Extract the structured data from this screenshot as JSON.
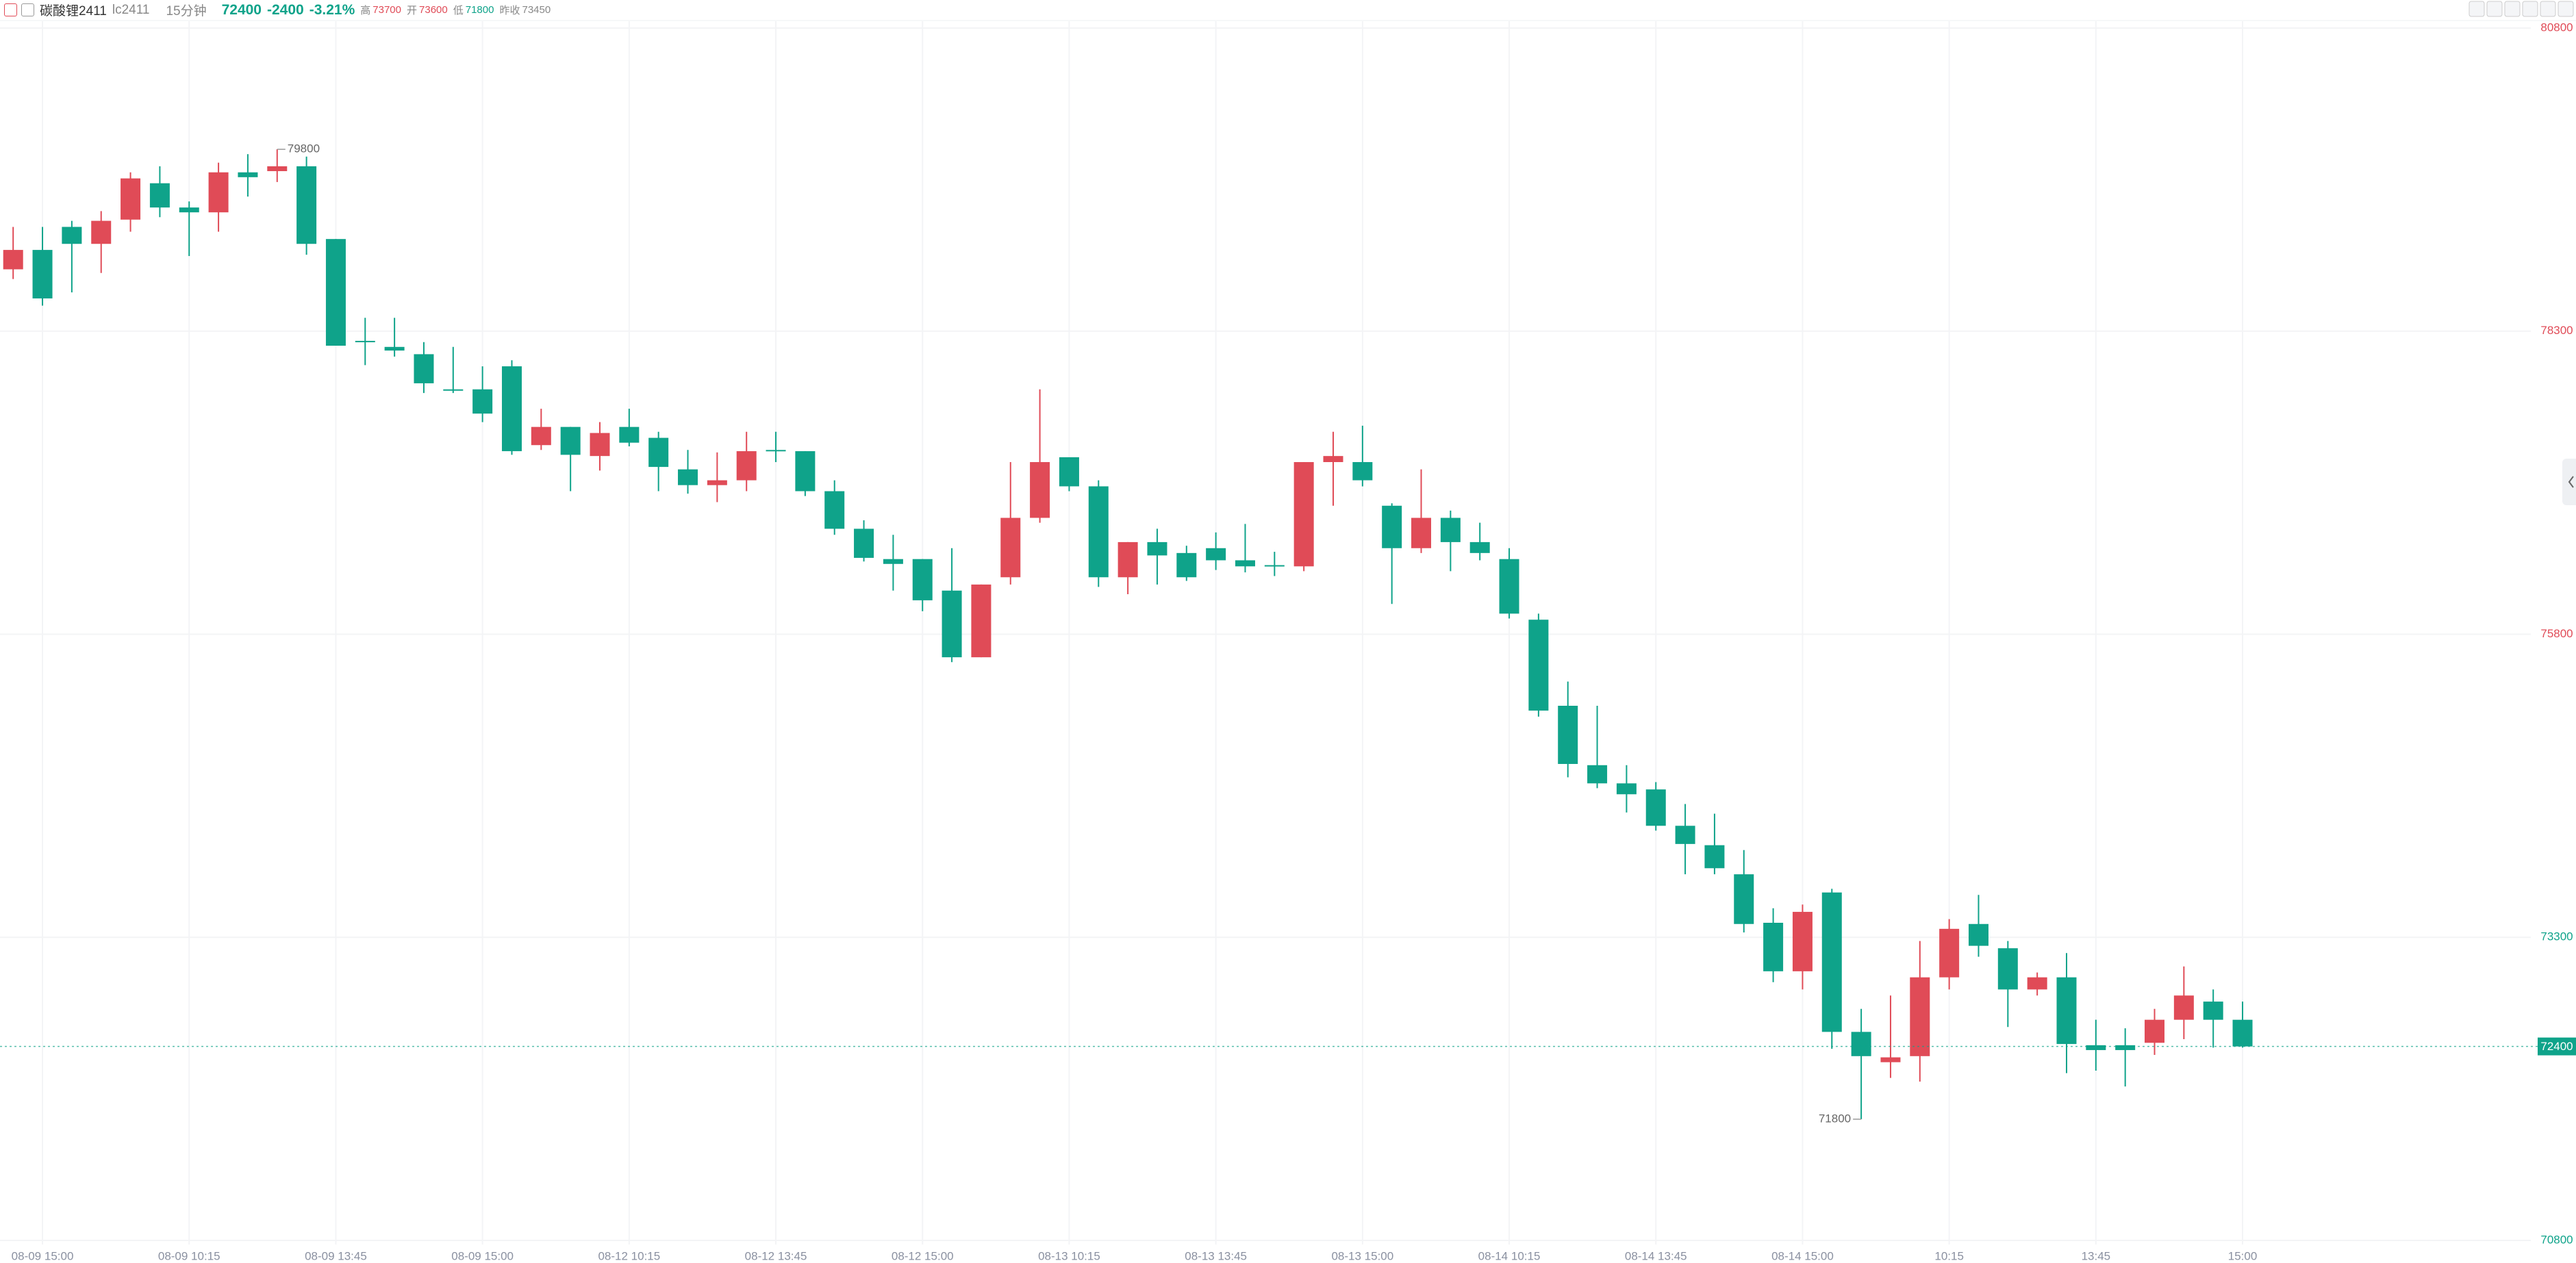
{
  "header": {
    "symbol_name": "碳酸锂2411",
    "symbol_code": "lc2411",
    "interval": "15分钟",
    "last": 72400,
    "change": -2400,
    "change_pct": "-3.21%",
    "high_label": "高",
    "high": 73700,
    "open_label": "开",
    "open": 73600,
    "low_label": "低",
    "low": 71800,
    "prev_close_label": "昨收",
    "prev_close": 73450
  },
  "chart_data": {
    "type": "candlestick",
    "categories": [
      null,
      "08-09 15:00",
      null,
      null,
      null,
      null,
      "08-09 10:15",
      null,
      null,
      null,
      null,
      "08-09 13:45",
      null,
      null,
      null,
      null,
      "08-09 15:00",
      null,
      null,
      null,
      null,
      "08-12 10:15",
      null,
      null,
      null,
      null,
      "08-12 13:45",
      null,
      null,
      null,
      null,
      "08-12 15:00",
      null,
      null,
      null,
      null,
      "08-13 10:15",
      null,
      null,
      null,
      null,
      "08-13 13:45",
      null,
      null,
      null,
      null,
      "08-13 15:00",
      null,
      null,
      null,
      null,
      "08-14 10:15",
      null,
      null,
      null,
      null,
      "08-14 13:45",
      null,
      null,
      null,
      null,
      "08-14 15:00",
      null,
      null,
      null,
      null,
      "10:15",
      null,
      null,
      null,
      null,
      "13:45",
      null,
      null,
      null,
      null,
      "15:00"
    ],
    "open": [
      78810,
      78970,
      79160,
      79020,
      79220,
      79520,
      79320,
      79280,
      79610,
      79620,
      79660,
      79060,
      78220,
      78170,
      78110,
      77820,
      77820,
      78010,
      77360,
      77510,
      77270,
      77510,
      77420,
      77160,
      77030,
      77070,
      77320,
      77310,
      76980,
      76670,
      76420,
      76420,
      76160,
      75610,
      76270,
      76760,
      77260,
      77020,
      76270,
      76560,
      76470,
      76510,
      76410,
      76370,
      76360,
      77220,
      77220,
      76860,
      76510,
      76760,
      76560,
      76420,
      75920,
      75210,
      74720,
      74570,
      74520,
      74220,
      74060,
      73820,
      73420,
      73020,
      73670,
      72520,
      72270,
      72320,
      72970,
      73410,
      73210,
      72870,
      72970,
      72410,
      72410,
      72430,
      72620,
      72770,
      72620
    ],
    "high": [
      79160,
      79160,
      79210,
      79290,
      79610,
      79660,
      79370,
      79690,
      79760,
      79800,
      79740,
      79060,
      78410,
      78410,
      78210,
      78170,
      78010,
      78060,
      77660,
      77510,
      77550,
      77660,
      77470,
      77320,
      77300,
      77470,
      77470,
      77310,
      77070,
      76740,
      76620,
      76420,
      76510,
      76210,
      77220,
      77820,
      77260,
      77070,
      76560,
      76670,
      76530,
      76640,
      76710,
      76480,
      77220,
      77470,
      77520,
      76880,
      77160,
      76820,
      76720,
      76510,
      75970,
      75410,
      75210,
      74720,
      74580,
      74400,
      74320,
      74020,
      73540,
      73570,
      73700,
      72710,
      72820,
      73270,
      73450,
      73650,
      73270,
      73010,
      73170,
      72620,
      72550,
      72710,
      73060,
      72870,
      72770
    ],
    "low": [
      78730,
      78510,
      78620,
      78780,
      79120,
      79240,
      78920,
      79120,
      79410,
      79530,
      78930,
      78180,
      78020,
      78090,
      77790,
      77790,
      77550,
      77280,
      77320,
      76980,
      77150,
      77350,
      76980,
      76960,
      76890,
      76980,
      77220,
      76940,
      76620,
      76400,
      76160,
      75990,
      75570,
      75610,
      76210,
      76720,
      76980,
      76190,
      76130,
      76210,
      76240,
      76330,
      76310,
      76280,
      76320,
      76860,
      77020,
      76050,
      76470,
      76320,
      76410,
      75930,
      75120,
      74620,
      74530,
      74330,
      74180,
      73820,
      73820,
      73340,
      72930,
      72870,
      72380,
      71800,
      72140,
      72110,
      72870,
      73140,
      72560,
      72820,
      72180,
      72200,
      72070,
      72330,
      72460,
      72390,
      72390
    ],
    "close": [
      78970,
      78570,
      79020,
      79210,
      79560,
      79320,
      79280,
      79610,
      79570,
      79660,
      79020,
      78180,
      78210,
      78140,
      77870,
      77810,
      77620,
      77310,
      77510,
      77280,
      77460,
      77380,
      77180,
      77030,
      77070,
      77310,
      77310,
      76980,
      76670,
      76430,
      76380,
      76080,
      75610,
      76210,
      76760,
      77220,
      77020,
      76270,
      76560,
      76450,
      76270,
      76410,
      76360,
      76360,
      77220,
      77270,
      77070,
      76510,
      76760,
      76560,
      76470,
      75970,
      75170,
      74730,
      74570,
      74480,
      74220,
      74070,
      73870,
      73410,
      73020,
      73510,
      72520,
      72320,
      72310,
      72970,
      73370,
      73230,
      72870,
      72970,
      72420,
      72370,
      72370,
      72620,
      72820,
      72620,
      72400
    ],
    "up_color": "#e04b57",
    "down_color": "#0fa38a",
    "ylim": [
      70800,
      80800
    ],
    "yticks": [
      70800,
      73300,
      75800,
      78300,
      80800
    ],
    "grid": true,
    "last_price": 72400,
    "max_label": 79800,
    "min_label": 71800
  }
}
